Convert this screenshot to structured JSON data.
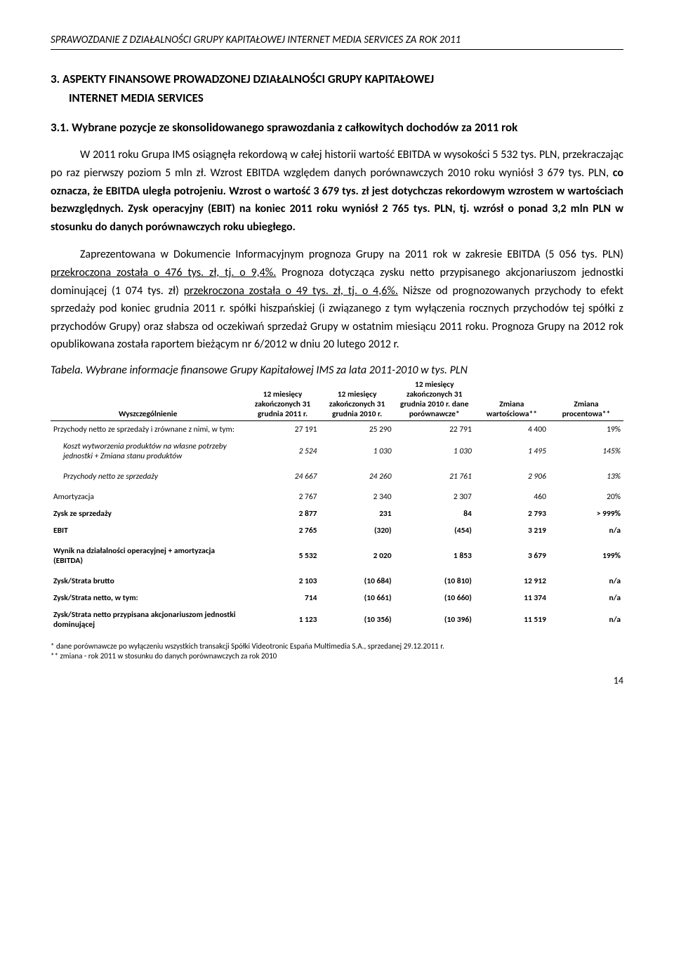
{
  "header": "SPRAWOZDANIE  Z DZIAŁALNOŚCI GRUPY KAPITAŁOWEJ INTERNET MEDIA SERVICES ZA ROK 2011",
  "section": {
    "number": "3.",
    "title_line1": "ASPEKTY FINANSOWE PROWADZONEJ DZIAŁALNOŚCI GRUPY KAPITAŁOWEJ",
    "title_line2": "INTERNET MEDIA SERVICES"
  },
  "subsection": {
    "number": "3.1.",
    "title": "Wybrane pozycje ze skonsolidowanego sprawozdania z całkowitych dochodów za 2011 rok"
  },
  "para1": {
    "pre": "W 2011 roku Grupa IMS osiągnęła rekordową w całej historii wartość EBITDA w wysokości 5 532 tys. PLN, przekraczając po raz pierwszy poziom 5 mln zł. Wzrost EBITDA względem danych porównawczych 2010 roku wyniósł 3 679  tys. PLN, ",
    "bold1": "co oznacza, że EBITDA uległa potrojeniu. Wzrost o wartość 3 679 tys. zł jest dotychczas rekordowym wzrostem w wartościach bezwzględnych. Zysk operacyjny (EBIT)  na koniec 2011 roku wyniósł 2 765 tys. PLN, tj. wzrósł o ponad 3,2 mln PLN w stosunku do danych porównawczych roku ubiegłego."
  },
  "para2": {
    "t1": "Zaprezentowana w Dokumencie Informacyjnym prognoza Grupy na 2011 rok w zakresie EBITDA (5 056 tys. PLN) ",
    "u1": "przekroczona została o 476 tys. zł, tj. o 9,4%.",
    "t2": " Prognoza dotycząca zysku netto przypisanego akcjonariuszom jednostki dominującej (1 074 tys. zł) ",
    "u2": "przekroczona została o 49 tys. zł, tj. o 4,6%.",
    "t3": " Niższe od prognozowanych przychody to efekt sprzedaży pod koniec grudnia 2011 r. spółki hiszpańskiej (i związanego z tym wyłączenia rocznych przychodów tej spółki z przychodów Grupy) oraz słabsza od oczekiwań sprzedaż Grupy w ostatnim miesiącu 2011 roku. Prognoza Grupy na 2012 rok opublikowana została raportem bieżącym nr 6/2012 w dniu 20 lutego 2012 r."
  },
  "table_caption": "Tabela. Wybrane informacje finansowe Grupy Kapitałowej IMS za lata 2011-2010 w tys. PLN",
  "table": {
    "columns": {
      "c0": "Wyszczególnienie",
      "c1": "12 miesięcy zakończonych 31 grudnia 2011 r.",
      "c2": "12 miesięcy zakończonych 31 grudnia 2010 r.",
      "c3": "12 miesięcy zakończonych 31 grudnia 2010 r. dane porównawcze*",
      "c4": "Zmiana wartościowa**",
      "c5": "Zmiana procentowa**"
    },
    "rows": [
      {
        "label": "Przychody netto ze sprzedaży i zrównane z nimi, w tym:",
        "v": [
          "27 191",
          "25 290",
          "22 791",
          "4 400",
          "19%"
        ],
        "style": ""
      },
      {
        "label": "Koszt wytworzenia produktów na własne potrzeby jednostki + Zmiana stanu produktów",
        "v": [
          "2 524",
          "1 030",
          "1 030",
          "1 495",
          "145%"
        ],
        "style": "italic indent"
      },
      {
        "label": "Przychody netto ze sprzedaży",
        "v": [
          "24 667",
          "24 260",
          "21 761",
          "2 906",
          "13%"
        ],
        "style": "italic indent spacer"
      },
      {
        "label": "Amortyzacja",
        "v": [
          "2 767",
          "2 340",
          "2 307",
          "460",
          "20%"
        ],
        "style": ""
      },
      {
        "label": "Zysk ze sprzedaży",
        "v": [
          "2 877",
          "231",
          "84",
          "2 793",
          "> 999%"
        ],
        "style": "bold"
      },
      {
        "label": "EBIT",
        "v": [
          "2 765",
          "(320)",
          "(454)",
          "3 219",
          "n/a"
        ],
        "style": "bold"
      },
      {
        "label": "Wynik na działalności operacyjnej + amortyzacja (EBITDA)",
        "v": [
          "5 532",
          "2 020",
          "1 853",
          "3 679",
          "199%"
        ],
        "style": "bold spacer"
      },
      {
        "label": "Zysk/Strata brutto",
        "v": [
          "2 103",
          "(10 684)",
          "(10 810)",
          "12 912",
          "n/a"
        ],
        "style": "bold"
      },
      {
        "label": "Zysk/Strata netto, w tym:",
        "v": [
          "714",
          "(10 661)",
          "(10 660)",
          "11 374",
          "n/a"
        ],
        "style": "bold"
      },
      {
        "label": "Zysk/Strata netto przypisana akcjonariuszom jednostki dominującej",
        "v": [
          "1 123",
          "(10 356)",
          "(10 396)",
          "11 519",
          "n/a"
        ],
        "style": "bold"
      }
    ]
  },
  "footnotes": {
    "f1": "* dane porównawcze po wyłączeniu wszystkich transakcji Spółki Videotronic España Multimedia S.A., sprzedanej 29.12.2011 r.",
    "f2": "** zmiana - rok 2011 w stosunku do danych porównawczych za rok 2010"
  },
  "pagenum": "14"
}
